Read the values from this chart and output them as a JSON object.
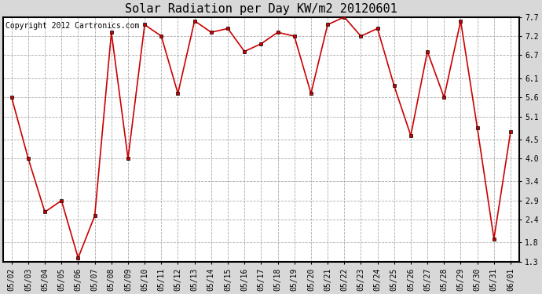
{
  "title": "Solar Radiation per Day KW/m2 20120601",
  "copyright": "Copyright 2012 Cartronics.com",
  "dates": [
    "05/02",
    "05/03",
    "05/04",
    "05/05",
    "05/06",
    "05/07",
    "05/08",
    "05/09",
    "05/10",
    "05/11",
    "05/12",
    "05/13",
    "05/14",
    "05/15",
    "05/16",
    "05/17",
    "05/18",
    "05/19",
    "05/20",
    "05/21",
    "05/22",
    "05/23",
    "05/24",
    "05/25",
    "05/26",
    "05/27",
    "05/28",
    "05/29",
    "05/30",
    "05/31",
    "06/01"
  ],
  "values": [
    5.6,
    4.0,
    2.6,
    2.9,
    1.4,
    2.5,
    7.3,
    4.0,
    7.5,
    7.2,
    5.7,
    7.6,
    7.3,
    7.4,
    6.8,
    7.0,
    7.3,
    7.2,
    5.7,
    7.5,
    7.7,
    7.2,
    7.4,
    5.9,
    4.6,
    6.8,
    5.6,
    7.6,
    4.8,
    1.9,
    4.7
  ],
  "yticks": [
    1.3,
    1.8,
    2.4,
    2.9,
    3.4,
    4.0,
    4.5,
    5.1,
    5.6,
    6.1,
    6.7,
    7.2,
    7.7
  ],
  "ylim": [
    1.3,
    7.7
  ],
  "line_color": "#cc0000",
  "marker_size": 3,
  "bg_color": "#d8d8d8",
  "plot_bg": "#ffffff",
  "grid_color": "#aaaaaa",
  "title_fontsize": 11,
  "copyright_fontsize": 7,
  "tick_fontsize": 7
}
